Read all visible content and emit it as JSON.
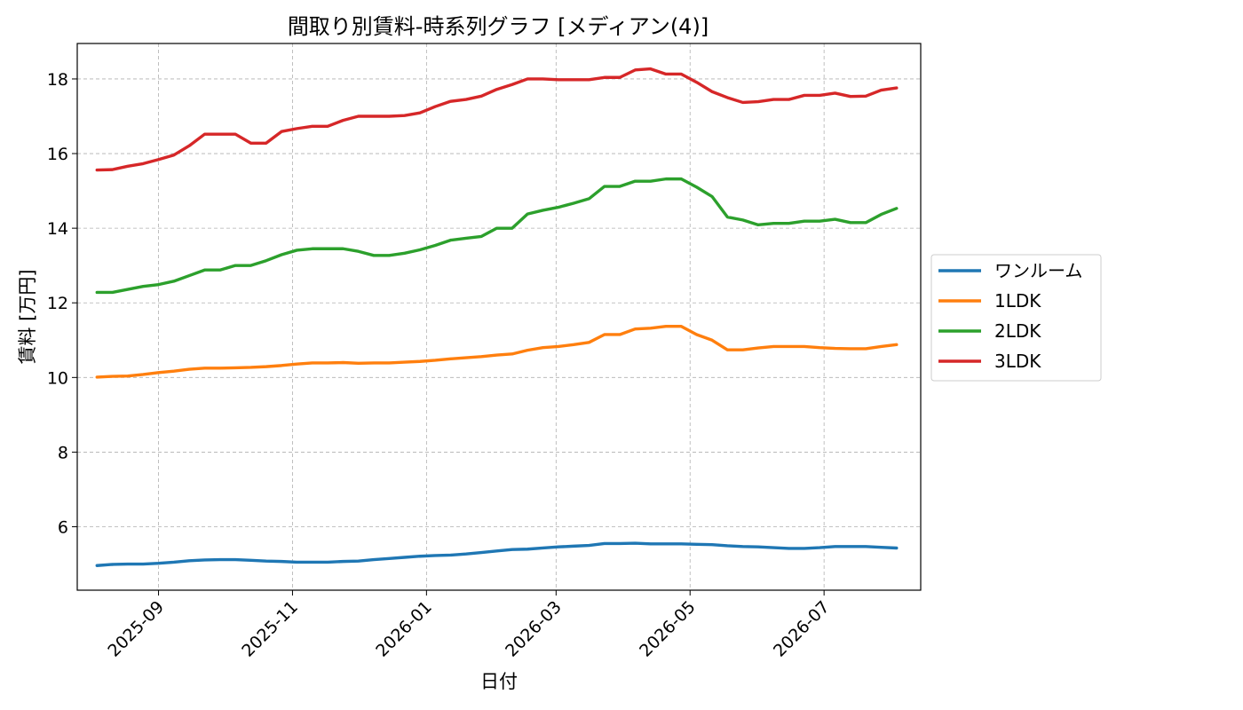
{
  "chart_data": {
    "type": "line",
    "title": "間取り別賃料-時系列グラフ [メディアン(4)]",
    "xlabel": "日付",
    "ylabel": "賃料 [万円]",
    "xlim": [
      "2025-07-26",
      "2026-08-14"
    ],
    "ylim": [
      4.3,
      18.95
    ],
    "xticks": [
      "2025-09-01",
      "2025-11-01",
      "2026-01-01",
      "2026-03-01",
      "2026-05-01",
      "2026-07-01"
    ],
    "xtick_labels": [
      "2025-09",
      "2025-11",
      "2026-01",
      "2026-03",
      "2026-05",
      "2026-07"
    ],
    "yticks": [
      6,
      8,
      10,
      12,
      14,
      16,
      18
    ],
    "ytick_labels": [
      "6",
      "8",
      "10",
      "12",
      "14",
      "16",
      "18"
    ],
    "grid": true,
    "legend_position": "center-right-outside",
    "x": [
      "2025-08-04",
      "2025-08-11",
      "2025-08-18",
      "2025-08-25",
      "2025-09-01",
      "2025-09-08",
      "2025-09-15",
      "2025-09-22",
      "2025-09-29",
      "2025-10-06",
      "2025-10-13",
      "2025-10-20",
      "2025-10-27",
      "2025-11-03",
      "2025-11-10",
      "2025-11-17",
      "2025-11-24",
      "2025-12-01",
      "2025-12-08",
      "2025-12-15",
      "2025-12-22",
      "2025-12-29",
      "2026-01-05",
      "2026-01-12",
      "2026-01-19",
      "2026-01-26",
      "2026-02-02",
      "2026-02-09",
      "2026-02-16",
      "2026-02-23",
      "2026-03-02",
      "2026-03-09",
      "2026-03-16",
      "2026-03-23",
      "2026-03-30",
      "2026-04-06",
      "2026-04-13",
      "2026-04-20",
      "2026-04-27",
      "2026-05-04",
      "2026-05-11",
      "2026-05-18",
      "2026-05-25",
      "2026-06-01",
      "2026-06-08",
      "2026-06-15",
      "2026-06-22",
      "2026-06-29",
      "2026-07-06",
      "2026-07-13",
      "2026-07-20",
      "2026-07-27",
      "2026-08-03"
    ],
    "series": [
      {
        "name": "ワンルーム",
        "color": "#1f77b4",
        "values": [
          4.96,
          4.99,
          5.0,
          5.0,
          5.02,
          5.05,
          5.09,
          5.11,
          5.12,
          5.12,
          5.1,
          5.08,
          5.07,
          5.05,
          5.05,
          5.05,
          5.07,
          5.08,
          5.12,
          5.15,
          5.18,
          5.21,
          5.23,
          5.24,
          5.27,
          5.31,
          5.35,
          5.39,
          5.4,
          5.43,
          5.46,
          5.48,
          5.5,
          5.55,
          5.55,
          5.56,
          5.54,
          5.54,
          5.54,
          5.53,
          5.52,
          5.49,
          5.47,
          5.46,
          5.44,
          5.42,
          5.42,
          5.44,
          5.47,
          5.47,
          5.47,
          5.45,
          5.43
        ]
      },
      {
        "name": "1LDK",
        "color": "#ff7f0e",
        "values": [
          10.01,
          10.03,
          10.04,
          10.08,
          10.13,
          10.17,
          10.22,
          10.25,
          10.25,
          10.26,
          10.27,
          10.29,
          10.32,
          10.36,
          10.39,
          10.39,
          10.4,
          10.38,
          10.39,
          10.39,
          10.41,
          10.43,
          10.46,
          10.5,
          10.53,
          10.56,
          10.6,
          10.63,
          10.73,
          10.8,
          10.83,
          10.88,
          10.94,
          11.15,
          11.15,
          11.3,
          11.32,
          11.37,
          11.37,
          11.15,
          11.0,
          10.74,
          10.74,
          10.79,
          10.83,
          10.83,
          10.83,
          10.8,
          10.78,
          10.77,
          10.77,
          10.83,
          10.88
        ]
      },
      {
        "name": "2LDK",
        "color": "#2ca02c",
        "values": [
          12.28,
          12.28,
          12.36,
          12.44,
          12.49,
          12.58,
          12.73,
          12.88,
          12.88,
          13.0,
          13.0,
          13.13,
          13.29,
          13.41,
          13.45,
          13.45,
          13.45,
          13.38,
          13.27,
          13.27,
          13.33,
          13.42,
          13.54,
          13.68,
          13.73,
          13.78,
          14.0,
          14.0,
          14.38,
          14.48,
          14.56,
          14.67,
          14.79,
          15.12,
          15.12,
          15.26,
          15.26,
          15.32,
          15.32,
          15.1,
          14.85,
          14.3,
          14.22,
          14.09,
          14.13,
          14.13,
          14.19,
          14.19,
          14.24,
          14.15,
          14.15,
          14.37,
          14.53
        ]
      },
      {
        "name": "3LDK",
        "color": "#d62728",
        "values": [
          15.56,
          15.57,
          15.66,
          15.73,
          15.84,
          15.96,
          16.21,
          16.52,
          16.52,
          16.52,
          16.28,
          16.28,
          16.59,
          16.67,
          16.73,
          16.73,
          16.89,
          17.0,
          17.0,
          17.0,
          17.02,
          17.09,
          17.26,
          17.4,
          17.45,
          17.54,
          17.72,
          17.85,
          18.0,
          18.0,
          17.98,
          17.98,
          17.98,
          18.04,
          18.04,
          18.24,
          18.27,
          18.13,
          18.13,
          17.91,
          17.66,
          17.5,
          17.37,
          17.39,
          17.45,
          17.45,
          17.56,
          17.56,
          17.62,
          17.53,
          17.54,
          17.7,
          17.76
        ]
      }
    ]
  }
}
